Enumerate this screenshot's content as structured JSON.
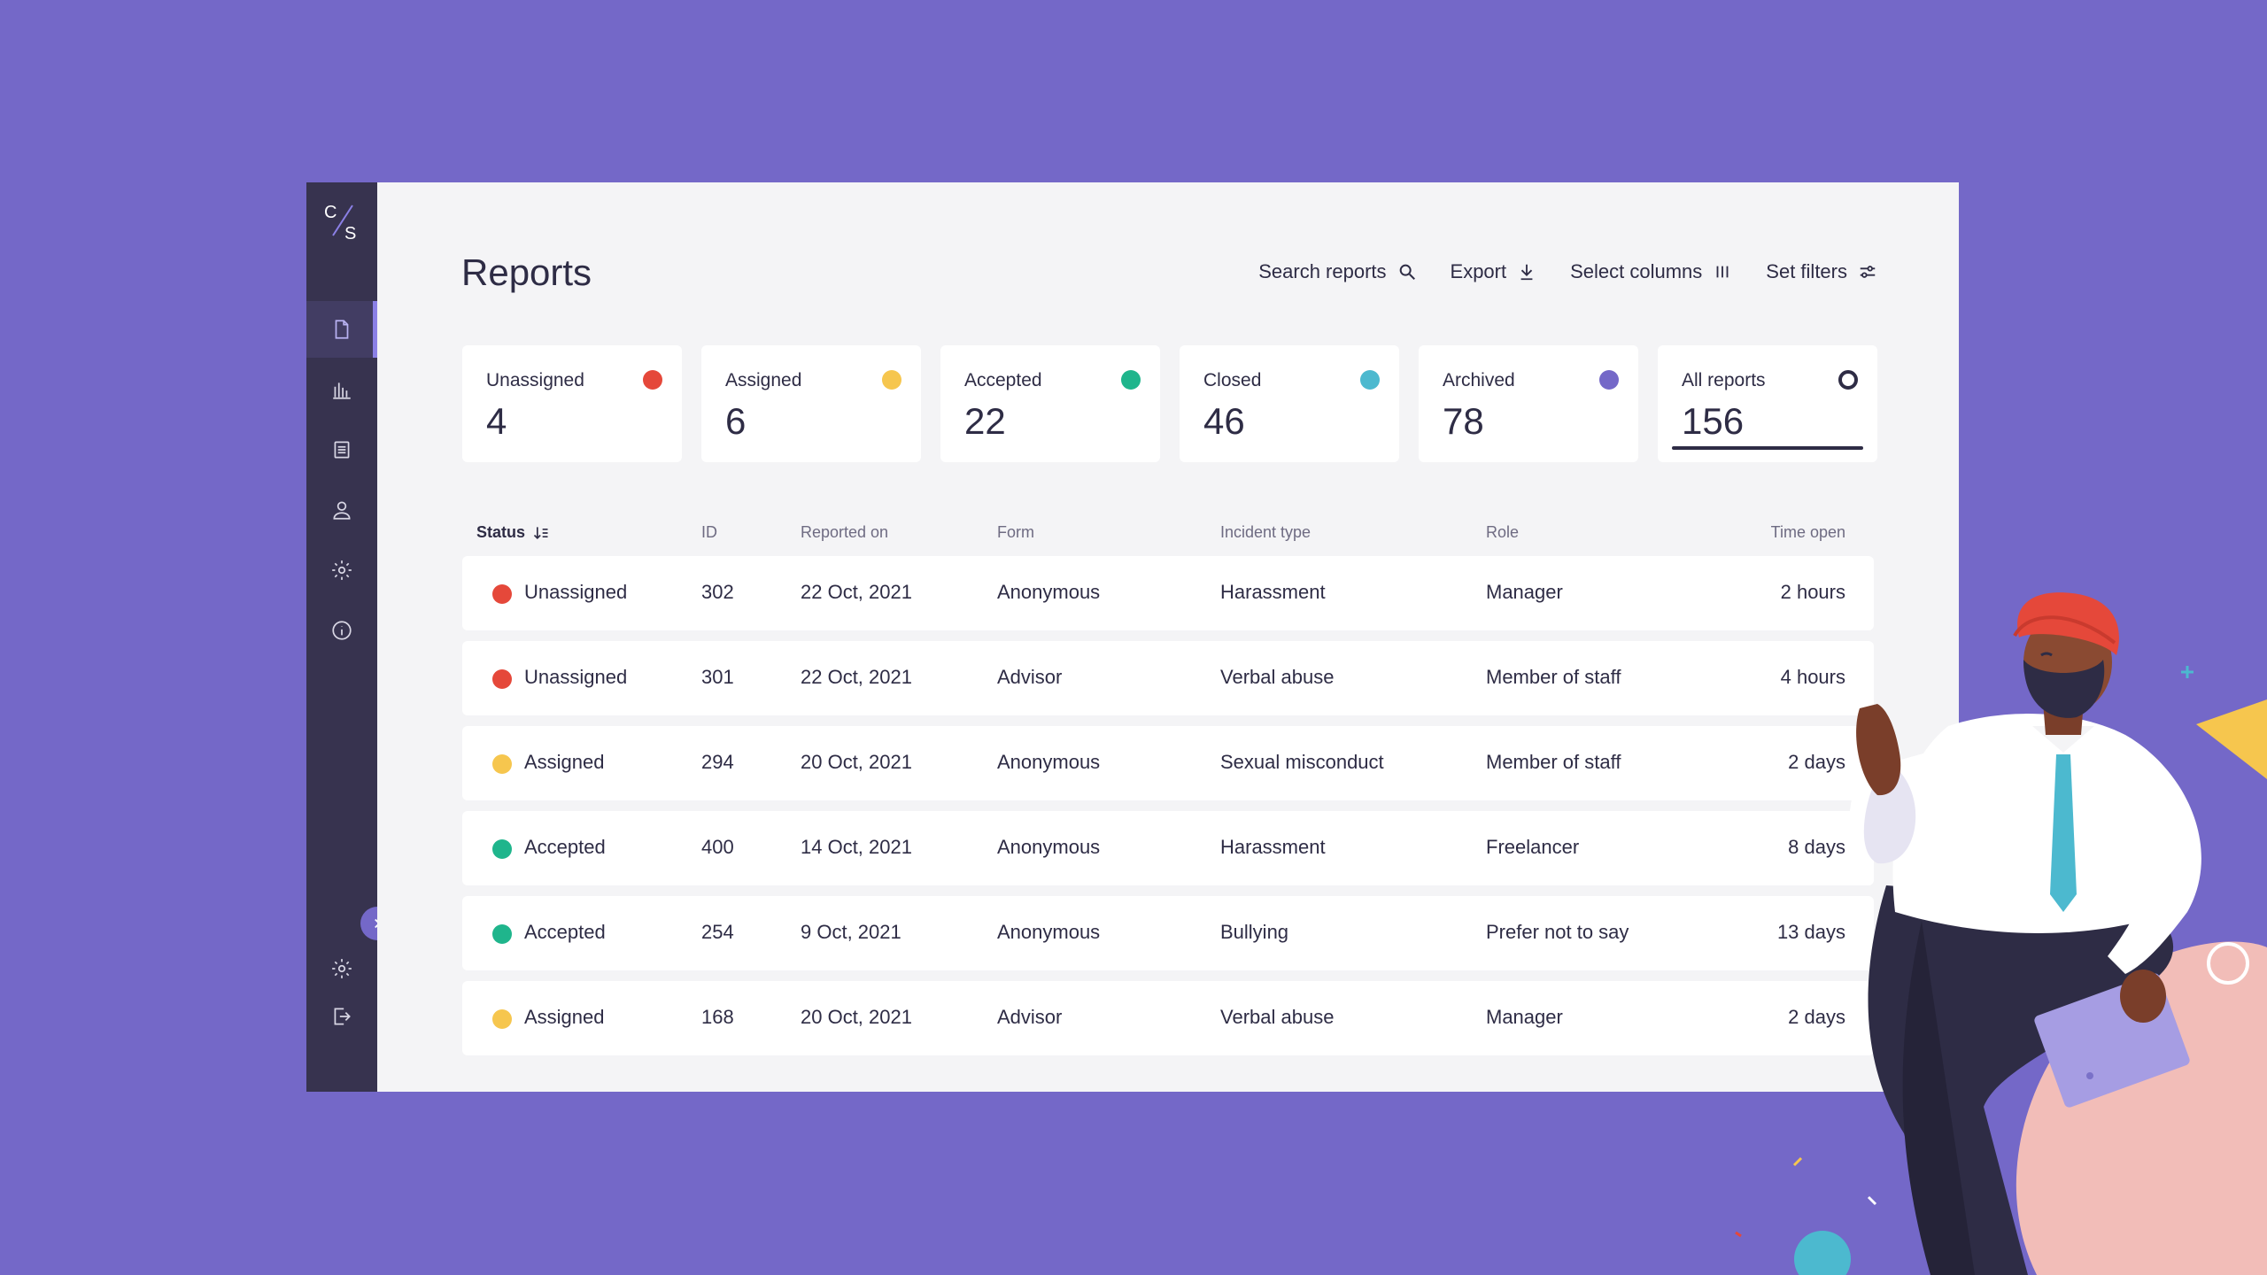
{
  "colors": {
    "background": "#7468C8",
    "sidebar": "#37334F",
    "accent": "#8B80E6",
    "status_unassigned": "#E5483A",
    "status_assigned": "#F6C64E",
    "status_accepted": "#1FB58C",
    "status_closed": "#4CB9CF",
    "status_archived": "#7468C8"
  },
  "sidebar": {
    "logo": "C/S",
    "nav": [
      {
        "icon": "document-icon",
        "active": true
      },
      {
        "icon": "bar-chart-icon",
        "active": false
      },
      {
        "icon": "list-icon",
        "active": false
      },
      {
        "icon": "user-icon",
        "active": false
      },
      {
        "icon": "gear-icon",
        "active": false
      },
      {
        "icon": "info-icon",
        "active": false
      }
    ],
    "bottom": [
      {
        "icon": "gear-icon"
      },
      {
        "icon": "logout-icon"
      }
    ],
    "collapse_icon": "chevron-right-icon"
  },
  "header": {
    "title": "Reports",
    "toolbar": {
      "search": "Search reports",
      "export": "Export",
      "columns": "Select columns",
      "filters": "Set filters"
    }
  },
  "cards": [
    {
      "label": "Unassigned",
      "value": "4",
      "color": "#E5483A"
    },
    {
      "label": "Assigned",
      "value": "6",
      "color": "#F6C64E"
    },
    {
      "label": "Accepted",
      "value": "22",
      "color": "#1FB58C"
    },
    {
      "label": "Closed",
      "value": "46",
      "color": "#4CB9CF"
    },
    {
      "label": "Archived",
      "value": "78",
      "color": "#7468C8"
    },
    {
      "label": "All reports",
      "value": "156",
      "selected": true
    }
  ],
  "table": {
    "headers": {
      "status": "Status",
      "id": "ID",
      "reported_on": "Reported on",
      "form": "Form",
      "incident_type": "Incident type",
      "role": "Role",
      "time_open": "Time open"
    },
    "rows": [
      {
        "status": "Unassigned",
        "color": "#E5483A",
        "id": "302",
        "reported_on": "22 Oct, 2021",
        "form": "Anonymous",
        "incident_type": "Harassment",
        "role": "Manager",
        "time_open": "2 hours"
      },
      {
        "status": "Unassigned",
        "color": "#E5483A",
        "id": "301",
        "reported_on": "22 Oct, 2021",
        "form": "Advisor",
        "incident_type": "Verbal abuse",
        "role": "Member of staff",
        "time_open": "4 hours"
      },
      {
        "status": "Assigned",
        "color": "#F6C64E",
        "id": "294",
        "reported_on": "20 Oct, 2021",
        "form": "Anonymous",
        "incident_type": "Sexual misconduct",
        "role": "Member of staff",
        "time_open": "2 days"
      },
      {
        "status": "Accepted",
        "color": "#1FB58C",
        "id": "400",
        "reported_on": "14 Oct, 2021",
        "form": "Anonymous",
        "incident_type": "Harassment",
        "role": "Freelancer",
        "time_open": "8 days"
      },
      {
        "status": "Accepted",
        "color": "#1FB58C",
        "id": "254",
        "reported_on": "9 Oct, 2021",
        "form": "Anonymous",
        "incident_type": "Bullying",
        "role": "Prefer not to say",
        "time_open": "13 days"
      },
      {
        "status": "Assigned",
        "color": "#F6C64E",
        "id": "168",
        "reported_on": "20 Oct, 2021",
        "form": "Advisor",
        "incident_type": "Verbal abuse",
        "role": "Manager",
        "time_open": "2 days"
      }
    ]
  }
}
